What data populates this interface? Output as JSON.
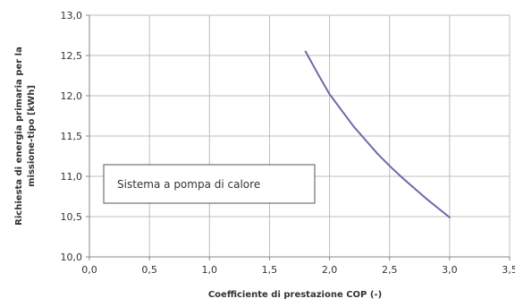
{
  "chart_data": {
    "type": "line",
    "title": "",
    "xlabel": "Coefficiente di prestazione COP (-)",
    "ylabel_lines": [
      "Richiesta di energia primaria per la",
      "missione-tipo [kWh]"
    ],
    "xlim": [
      0.0,
      3.5
    ],
    "ylim": [
      10.0,
      13.0
    ],
    "x_ticks": [
      0.0,
      0.5,
      1.0,
      1.5,
      2.0,
      2.5,
      3.0,
      3.5
    ],
    "y_ticks": [
      10.0,
      10.5,
      11.0,
      11.5,
      12.0,
      12.5,
      13.0
    ],
    "x_tick_labels": [
      "0,0",
      "0,5",
      "1,0",
      "1,5",
      "2,0",
      "2,5",
      "3,0",
      "3,5"
    ],
    "y_tick_labels": [
      "10,0",
      "10,5",
      "11,0",
      "11,5",
      "12,0",
      "12,5",
      "13,0"
    ],
    "grid": true,
    "series": [
      {
        "color": "#6a6aa8",
        "x": [
          1.8,
          1.9,
          2.0,
          2.1,
          2.2,
          2.3,
          2.4,
          2.5,
          2.6,
          2.7,
          2.8,
          2.9,
          3.0
        ],
        "y": [
          12.55,
          12.28,
          12.02,
          11.82,
          11.62,
          11.45,
          11.28,
          11.13,
          10.99,
          10.86,
          10.73,
          10.61,
          10.49
        ]
      }
    ],
    "annotation": {
      "text": "Sistema  a pompa di calore"
    }
  }
}
